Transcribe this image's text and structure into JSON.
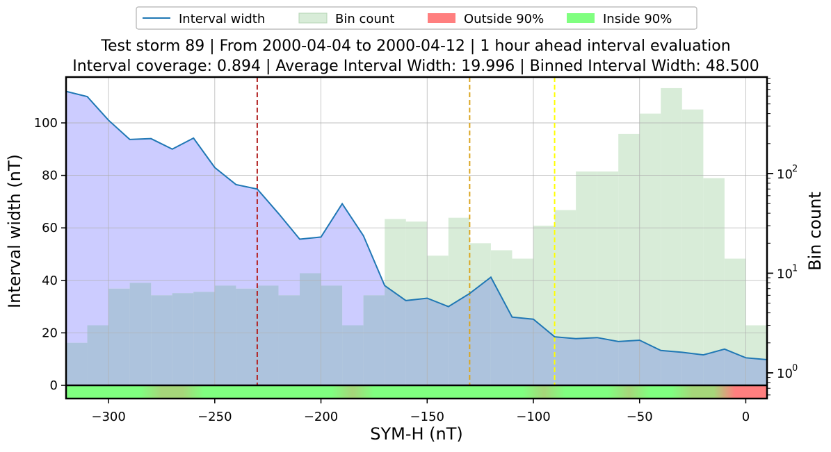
{
  "chart_data": {
    "type": "area",
    "title_line1": "Test storm 89 | From 2000-04-04 to 2000-04-12 | 1 hour ahead interval evaluation",
    "title_line2": "Interval coverage: 0.894 | Average Interval Width: 19.996 | Binned Interval Width: 48.500",
    "xlabel": "SYM-H (nT)",
    "ylabel_left": "Interval width (nT)",
    "ylabel_right": "Bin count",
    "xlim": [
      -320,
      10
    ],
    "ylim_left": [
      -5,
      118
    ],
    "ylim_right_log": [
      0.6,
      800
    ],
    "y_scale_right": "log",
    "x_ticks": [
      -300,
      -250,
      -200,
      -150,
      -100,
      -50,
      0
    ],
    "x_tick_labels": [
      "−300",
      "−250",
      "−200",
      "−150",
      "−100",
      "−50",
      "0"
    ],
    "y_ticks_left": [
      0,
      20,
      40,
      60,
      80,
      100
    ],
    "y_tick_labels_left": [
      "0",
      "20",
      "40",
      "60",
      "80",
      "100"
    ],
    "y_ticks_right": [
      1,
      10,
      100
    ],
    "y_tick_labels_right": [
      "10",
      "10",
      "10"
    ],
    "y_tick_exponents_right": [
      "0",
      "1",
      "2"
    ],
    "grid": true,
    "legend_position": "top-center",
    "legend": [
      {
        "label": "Interval width",
        "kind": "line",
        "color": "#1f77b4"
      },
      {
        "label": "Bin count",
        "kind": "patch",
        "color": "#d8ecd8",
        "edge": "#b5d5b5"
      },
      {
        "label": "Outside 90%",
        "kind": "patch",
        "color": "#ff7f7f"
      },
      {
        "label": "Inside 90%",
        "kind": "patch",
        "color": "#80ff80"
      }
    ],
    "colors": {
      "interval_fill": "#ccccff",
      "interval_line": "#1f77b4",
      "bins_fill": "#d8ecd8",
      "overlap_fill": "#adc3dd",
      "inside": "#80ff80",
      "outside": "#ff7f7f",
      "mixed": "#a6d67a",
      "vline_1": "#b22222",
      "vline_2": "#daa520",
      "vline_3": "#ffff00"
    },
    "vlines": [
      -230,
      -130,
      -90
    ],
    "interval_width": {
      "x": [
        -320,
        -310,
        -300,
        -290,
        -280,
        -270,
        -260,
        -250,
        -240,
        -230,
        -220,
        -210,
        -200,
        -190,
        -180,
        -170,
        -160,
        -150,
        -140,
        -130,
        -120,
        -110,
        -100,
        -90,
        -80,
        -70,
        -60,
        -50,
        -40,
        -30,
        -20,
        -10,
        0,
        10
      ],
      "y": [
        112,
        110,
        101,
        93.7,
        94,
        90,
        94.2,
        83,
        76.5,
        74.8,
        65.5,
        55.7,
        56.5,
        69.2,
        57,
        38,
        32.3,
        33.2,
        30,
        35,
        41.2,
        26,
        25.2,
        18.5,
        17.8,
        18.2,
        16.7,
        17.2,
        13.3,
        12.6,
        11.6,
        13.8,
        10.5,
        9.8
      ]
    },
    "bin_count": {
      "bin_edges": [
        -320,
        -310,
        -300,
        -290,
        -280,
        -270,
        -260,
        -250,
        -240,
        -230,
        -220,
        -210,
        -200,
        -190,
        -180,
        -170,
        -160,
        -150,
        -140,
        -130,
        -120,
        -110,
        -100,
        -90,
        -80,
        -70,
        -60,
        -50,
        -40,
        -30,
        -20,
        -10,
        0,
        10
      ],
      "counts": [
        2,
        3,
        7,
        8,
        6,
        6.3,
        6.5,
        7.5,
        7,
        7.5,
        6,
        10,
        7.5,
        3,
        6,
        35,
        33,
        15,
        36,
        20,
        17,
        14,
        30,
        43,
        105,
        105,
        250,
        400,
        720,
        440,
        90,
        14,
        3
      ]
    },
    "coverage_strip": {
      "x": [
        -320,
        -310,
        -300,
        -290,
        -280,
        -270,
        -260,
        -250,
        -240,
        -230,
        -220,
        -210,
        -200,
        -190,
        -180,
        -170,
        -160,
        -150,
        -140,
        -130,
        -120,
        -110,
        -100,
        -90,
        -80,
        -70,
        -60,
        -50,
        -40,
        -30,
        -20,
        -10,
        0
      ],
      "state": [
        "in",
        "in",
        "in",
        "in",
        "mix",
        "mix",
        "in",
        "in",
        "in",
        "in",
        "in",
        "in",
        "in",
        "mix",
        "in",
        "in",
        "in",
        "in",
        "in",
        "in",
        "in",
        "in",
        "mix",
        "in",
        "in",
        "in",
        "mix",
        "in",
        "in",
        "mix",
        "mix",
        "out",
        "out"
      ]
    }
  }
}
